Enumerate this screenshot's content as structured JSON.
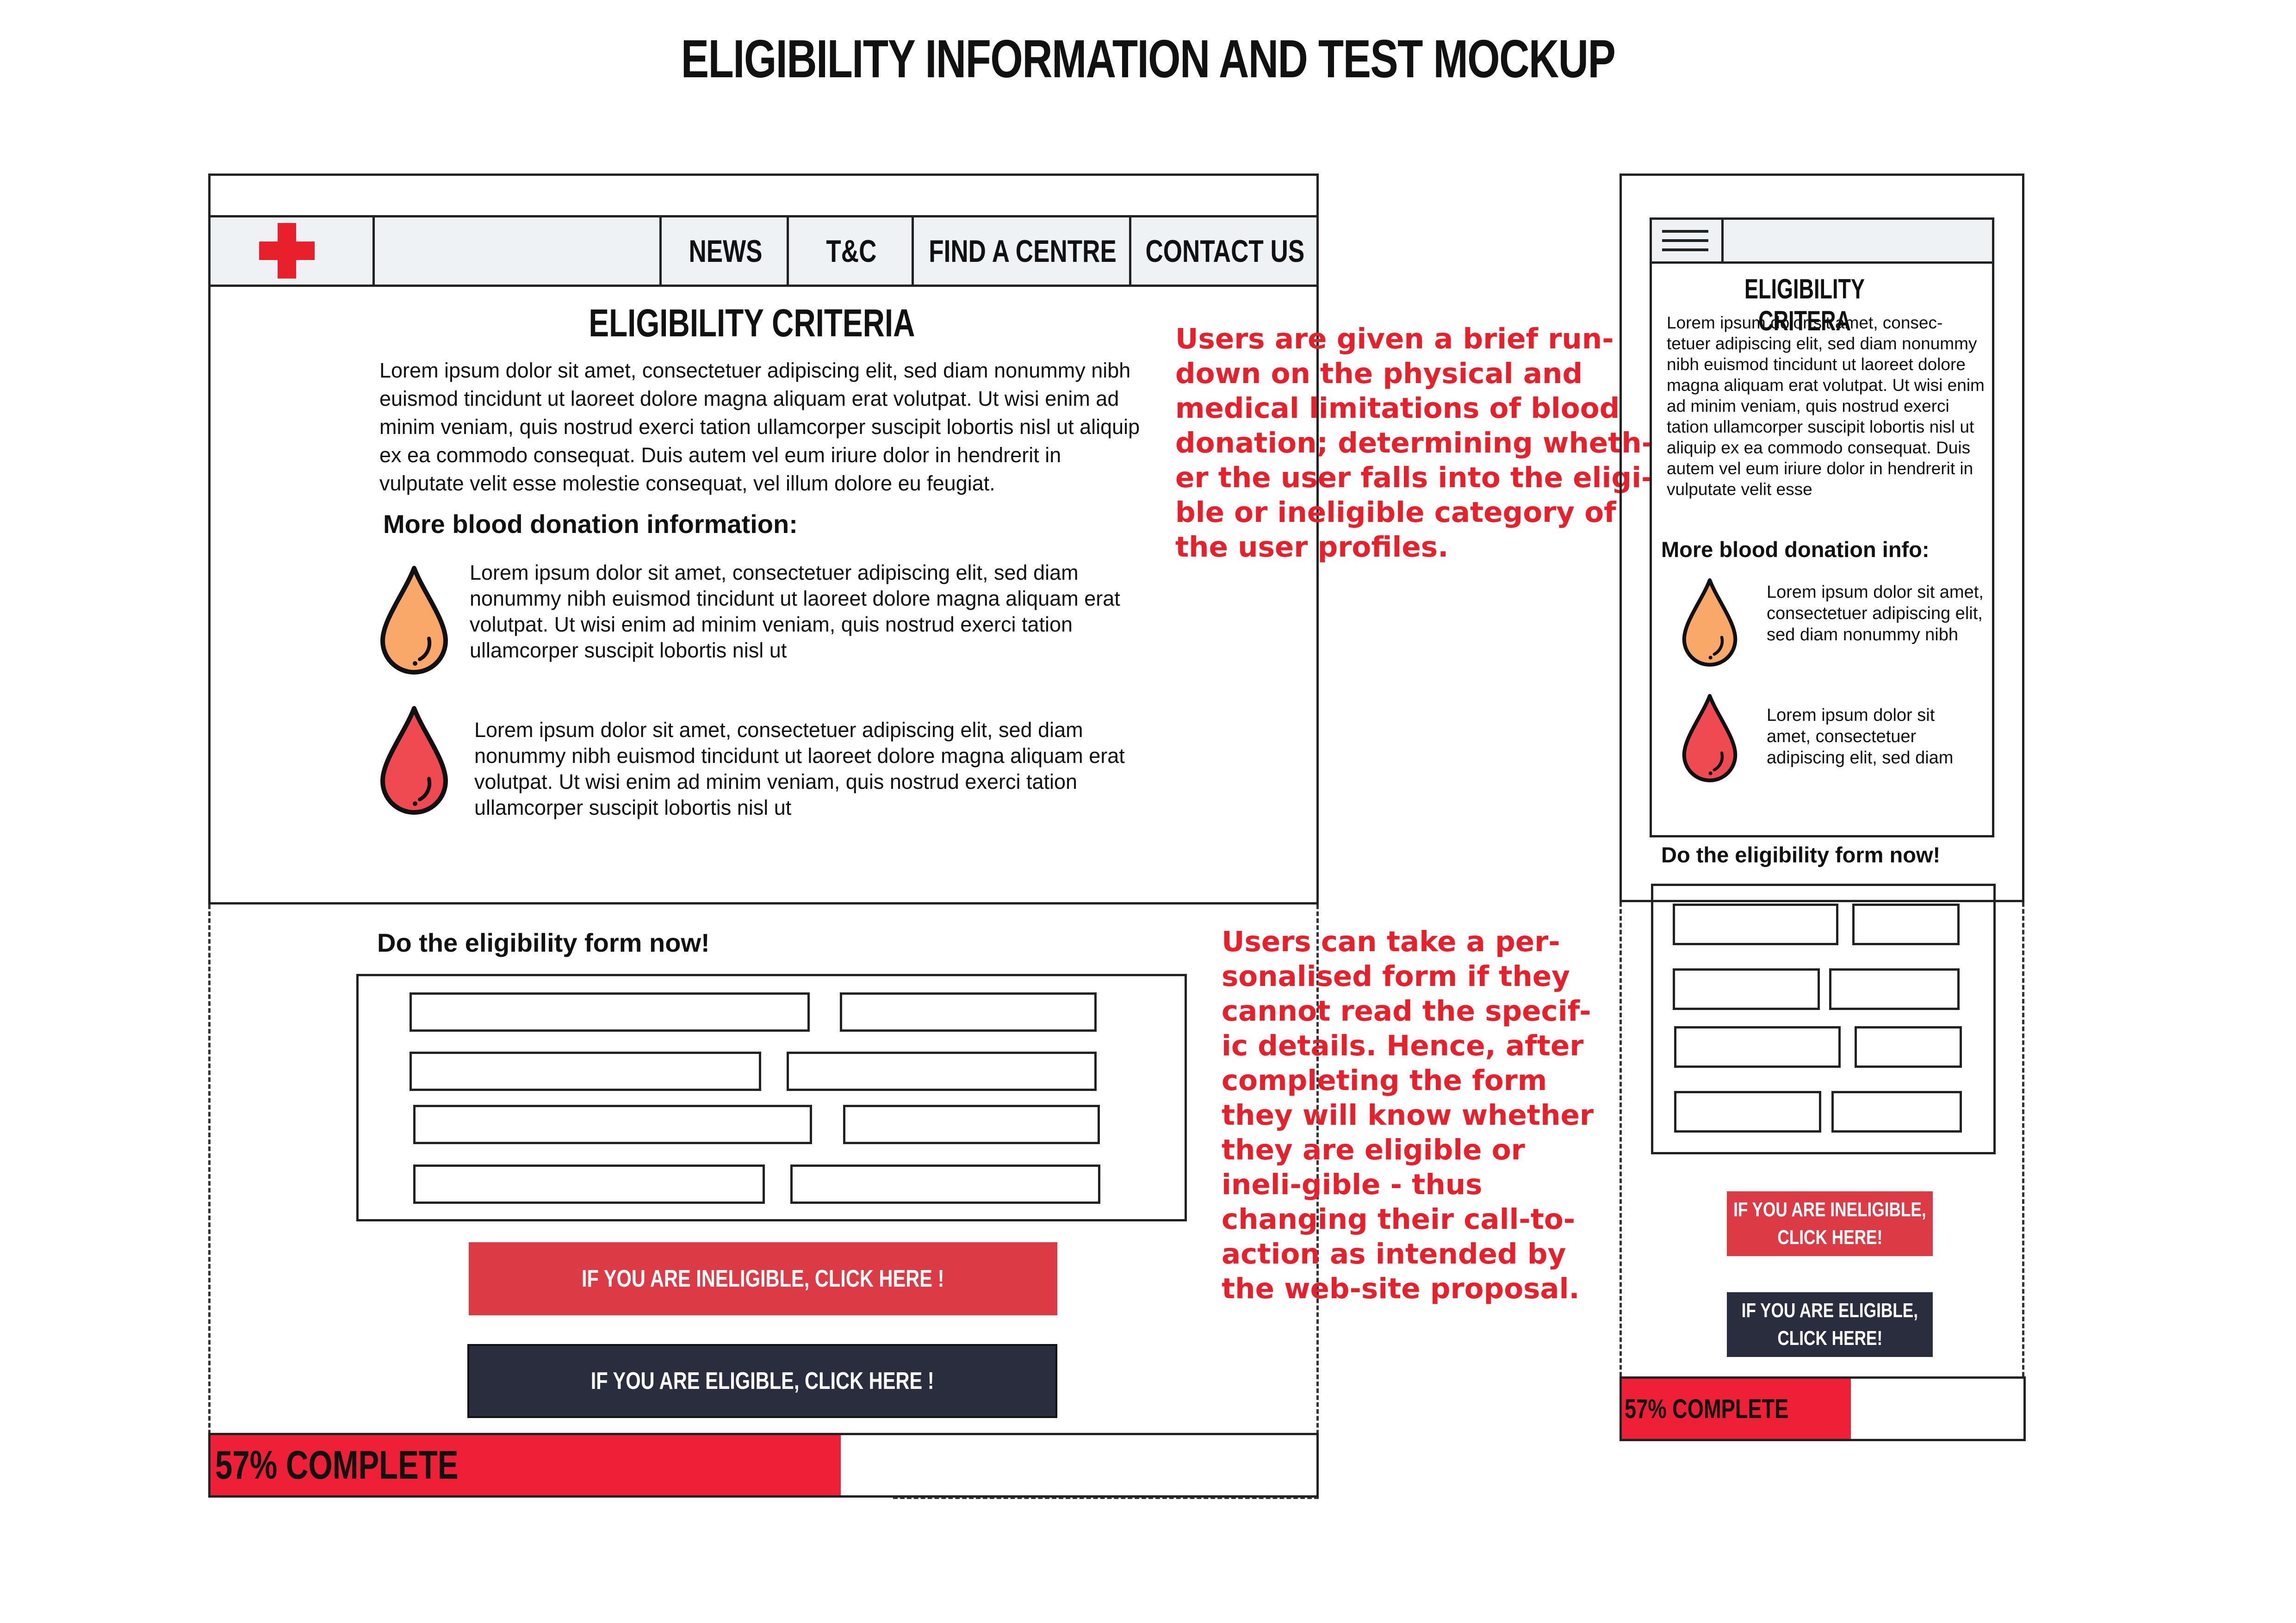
{
  "page_title": "ELIGIBILITY INFORMATION AND TEST MOCKUP",
  "desktop": {
    "nav": {
      "logo": "red-cross-logo",
      "items": [
        "NEWS",
        "T&C",
        "FIND A CENTRE",
        "CONTACT US"
      ]
    },
    "heading": "ELIGIBILITY CRITERIA",
    "intro": "Lorem ipsum dolor sit amet, consectetuer adipiscing elit, sed diam nonummy nibh euismod tincidunt ut laoreet dolore magna aliquam erat volutpat. Ut wisi enim ad minim veniam, quis nostrud exerci tation ullamcorper suscipit lobortis nisl ut aliquip ex ea commodo consequat. Duis autem vel eum iriure dolor in hendrerit in vulputate velit esse molestie consequat, vel illum dolore eu feugiat.",
    "more_info_heading": "More blood donation information:",
    "info_items": [
      {
        "icon": "orange-blood-drop-icon",
        "text": "Lorem ipsum dolor sit amet, consectetuer adipiscing elit, sed diam nonummy nibh euismod tincidunt ut laoreet dolore magna aliquam erat volutpat. Ut wisi enim ad minim veniam, quis nostrud exerci tation ullamcorper suscipit lobortis nisl ut"
      },
      {
        "icon": "red-blood-drop-icon",
        "text": "Lorem ipsum dolor sit amet, consectetuer adipiscing elit, sed diam nonummy nibh euismod tincidunt ut laoreet dolore magna aliquam erat volutpat. Ut wisi enim ad minim veniam, quis nostrud exerci tation ullamcorper suscipit lobortis nisl ut"
      }
    ],
    "form_heading": "Do the eligibility form now!",
    "ineligible_button": "IF YOU ARE INELIGIBLE, CLICK HERE !",
    "eligible_button": "IF YOU ARE ELIGIBLE, CLICK HERE !",
    "progress_label": "57% COMPLETE",
    "progress_value": 0.57
  },
  "annotations": {
    "top": "Users are given a brief run-down on the physical and medical limitations of blood donation; determining wheth-er the user falls into the eligi-ble or ineligible category of the user profiles.",
    "bottom": "Users can take a per-sonalised form if they cannot read the specif-ic details. Hence, after completing the form they will know whether they are eligible or ineli-gible - thus changing their call-to-action as intended by the web-site proposal."
  },
  "mobile": {
    "menu_icon": "hamburger-menu-icon",
    "heading": "ELIGIBILITY CRITERA",
    "intro": "Lorem ipsum dolor sit amet, consec-tetuer adipiscing elit, sed diam nonummy nibh euismod tincidunt ut laoreet dolore magna aliquam erat volutpat. Ut wisi enim ad minim veniam, quis nostrud exerci tation ullamcorper suscipit lobortis nisl ut aliquip ex ea commodo consequat. Duis autem vel eum iriure dolor in hendrerit in vulputate velit esse",
    "more_info_heading": "More blood donation info:",
    "info_items": [
      {
        "icon": "orange-blood-drop-icon",
        "text": "Lorem ipsum dolor sit amet, consectetuer adipiscing elit, sed diam nonummy nibh"
      },
      {
        "icon": "red-blood-drop-icon",
        "text": "Lorem ipsum dolor sit amet, consectetuer adipiscing elit, sed diam"
      }
    ],
    "form_heading": "Do the eligibility form now!",
    "ineligible_button_line1": "IF YOU ARE INELIGIBLE,",
    "ineligible_button_line2": "CLICK HERE!",
    "eligible_button_line1": "IF YOU ARE ELIGIBLE,",
    "eligible_button_line2": "CLICK HERE!",
    "progress_label": "57% COMPLETE",
    "progress_value": 0.57
  },
  "colors": {
    "accent_red": "#ef1f37",
    "button_red": "#dc3a44",
    "button_navy": "#2a2d3e",
    "annotation_red": "#e8202b",
    "drop_orange": "#f9a86a",
    "drop_red": "#ef4a52",
    "nav_bg": "#eef2f5"
  }
}
